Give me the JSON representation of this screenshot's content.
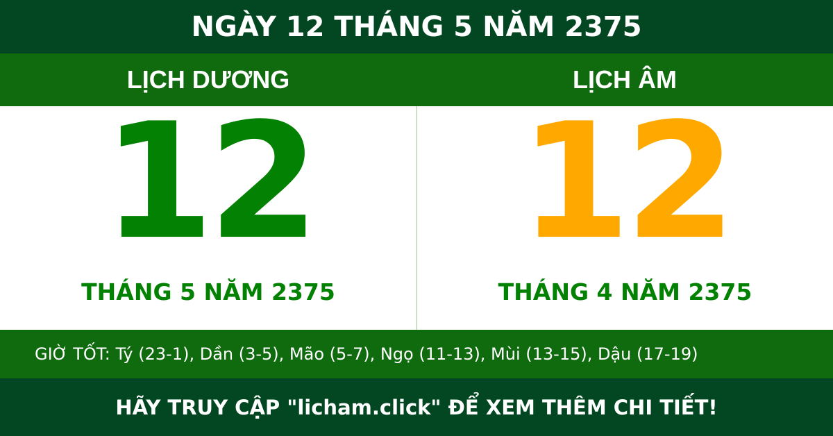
{
  "title": "NGÀY 12 THÁNG 5 NĂM 2375",
  "solar": {
    "heading": "LỊCH DƯƠNG",
    "day": "12",
    "month_year": "THÁNG 5 NĂM 2375"
  },
  "lunar": {
    "heading": "LỊCH ÂM",
    "day": "12",
    "month_year": "THÁNG 4 NĂM 2375"
  },
  "good_hours": "GIỜ TỐT: Tý (23-1), Dần (3-5), Mão (5-7), Ngọ (11-13), Mùi (13-15), Dậu (17-19)",
  "footer": "HÃY TRUY CẬP \"licham.click\" ĐỂ XEM THÊM CHI TIẾT!",
  "colors": {
    "dark_green": "#034722",
    "green": "#106b0f",
    "solar_day": "#028102",
    "lunar_day": "#ffa800"
  }
}
